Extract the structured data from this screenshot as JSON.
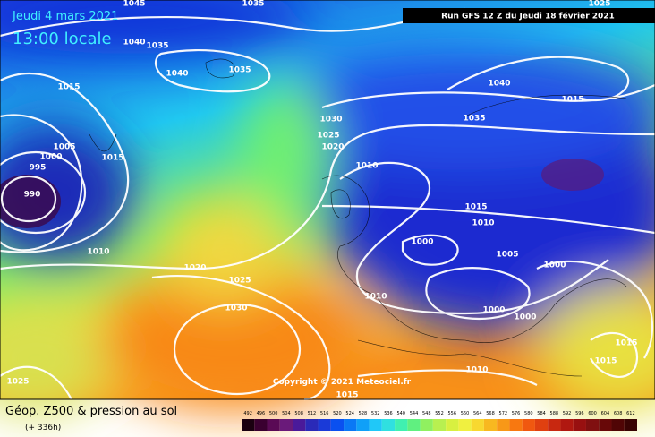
{
  "header": {
    "date": "Jeudi 4 mars 2021",
    "time": "13:00 locale",
    "run": "Run GFS 12 Z du Jeudi 18 février 2021"
  },
  "copyright": "Copyright © 2021 Meteociel.fr",
  "footer": {
    "title": "Géop. Z500 & pression au sol",
    "lead": "(+ 336h)"
  },
  "isobar_labels": [
    "1045",
    "1035",
    "1025",
    "1040",
    "1035",
    "1040",
    "1035",
    "1015",
    "1040",
    "1015",
    "1030",
    "1035",
    "1025",
    "1020",
    "1005",
    "1000",
    "1015",
    "995",
    "1010",
    "990",
    "1015",
    "1010",
    "1000",
    "1010",
    "1005",
    "1000",
    "1020",
    "1025",
    "1010",
    "1030",
    "1000",
    "1000",
    "1015",
    "1015",
    "1025",
    "1010",
    "1015"
  ],
  "color_scale": {
    "labels": [
      "492",
      "496",
      "500",
      "504",
      "508",
      "512",
      "516",
      "520",
      "524",
      "528",
      "532",
      "536",
      "540",
      "544",
      "548",
      "552",
      "556",
      "560",
      "564",
      "568",
      "572",
      "576",
      "580",
      "584",
      "588",
      "592",
      "596",
      "600",
      "604",
      "608",
      "612"
    ],
    "colors": [
      "#1a0010",
      "#3a0030",
      "#5a0a55",
      "#6a1a7a",
      "#4a1a9a",
      "#2a2ab8",
      "#1a3ad8",
      "#0a50f0",
      "#0a78f5",
      "#10a0f8",
      "#20c8f8",
      "#30e0e0",
      "#40f0b0",
      "#60f080",
      "#90f060",
      "#b8f050",
      "#d8f040",
      "#f0f040",
      "#f8d830",
      "#f8b820",
      "#f89818",
      "#f87810",
      "#f05810",
      "#e04010",
      "#c82810",
      "#b01810",
      "#981010",
      "#801010",
      "#680808",
      "#500505",
      "#380303"
    ]
  }
}
